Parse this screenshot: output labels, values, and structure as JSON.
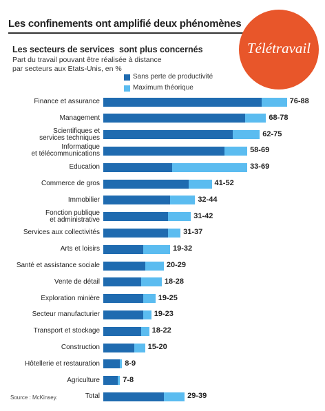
{
  "title": "Les confinements ont amplifié deux phénomènes",
  "badge": "Télétravail",
  "source": "Source : McKinsey.",
  "chart_data": {
    "type": "bar",
    "orientation": "horizontal",
    "title": "Les secteurs de services  sont plus concernés",
    "subtitle": "Part du travail pouvant être réalisée à distance par secteurs aux Etats-Unis, en %",
    "categories": [
      "Finance et assurance",
      "Management",
      "Scientifiques et\nservices techniques",
      "Informatique\net télécommunications",
      "Education",
      "Commerce de gros",
      "Immobilier",
      "Fonction publique\net administrative",
      "Services aux collectivités",
      "Arts et loisirs",
      "Santé et assistance sociale",
      "Vente de détail",
      "Exploration minière",
      "Secteur manufacturier",
      "Transport et stockage",
      "Construction",
      "Hôtellerie et restauration",
      "Agriculture",
      "Total"
    ],
    "series": [
      {
        "name": "Sans perte de productivité",
        "color": "#1f6bb0",
        "values": [
          76,
          68,
          62,
          58,
          33,
          41,
          32,
          31,
          31,
          19,
          20,
          18,
          19,
          19,
          18,
          15,
          8,
          7,
          29
        ]
      },
      {
        "name": "Maximum théorique",
        "color": "#5bbcf0",
        "values": [
          88,
          78,
          75,
          69,
          69,
          52,
          44,
          42,
          37,
          32,
          29,
          28,
          25,
          23,
          22,
          20,
          9,
          8,
          39
        ]
      }
    ],
    "value_labels": [
      "76-88",
      "68-78",
      "62-75",
      "58-69",
      "33-69",
      "41-52",
      "32-44",
      "31-42",
      "31-37",
      "19-32",
      "20-29",
      "18-28",
      "19-25",
      "19-23",
      "18-22",
      "15-20",
      "8-9",
      "7-8",
      "29-39"
    ]
  }
}
